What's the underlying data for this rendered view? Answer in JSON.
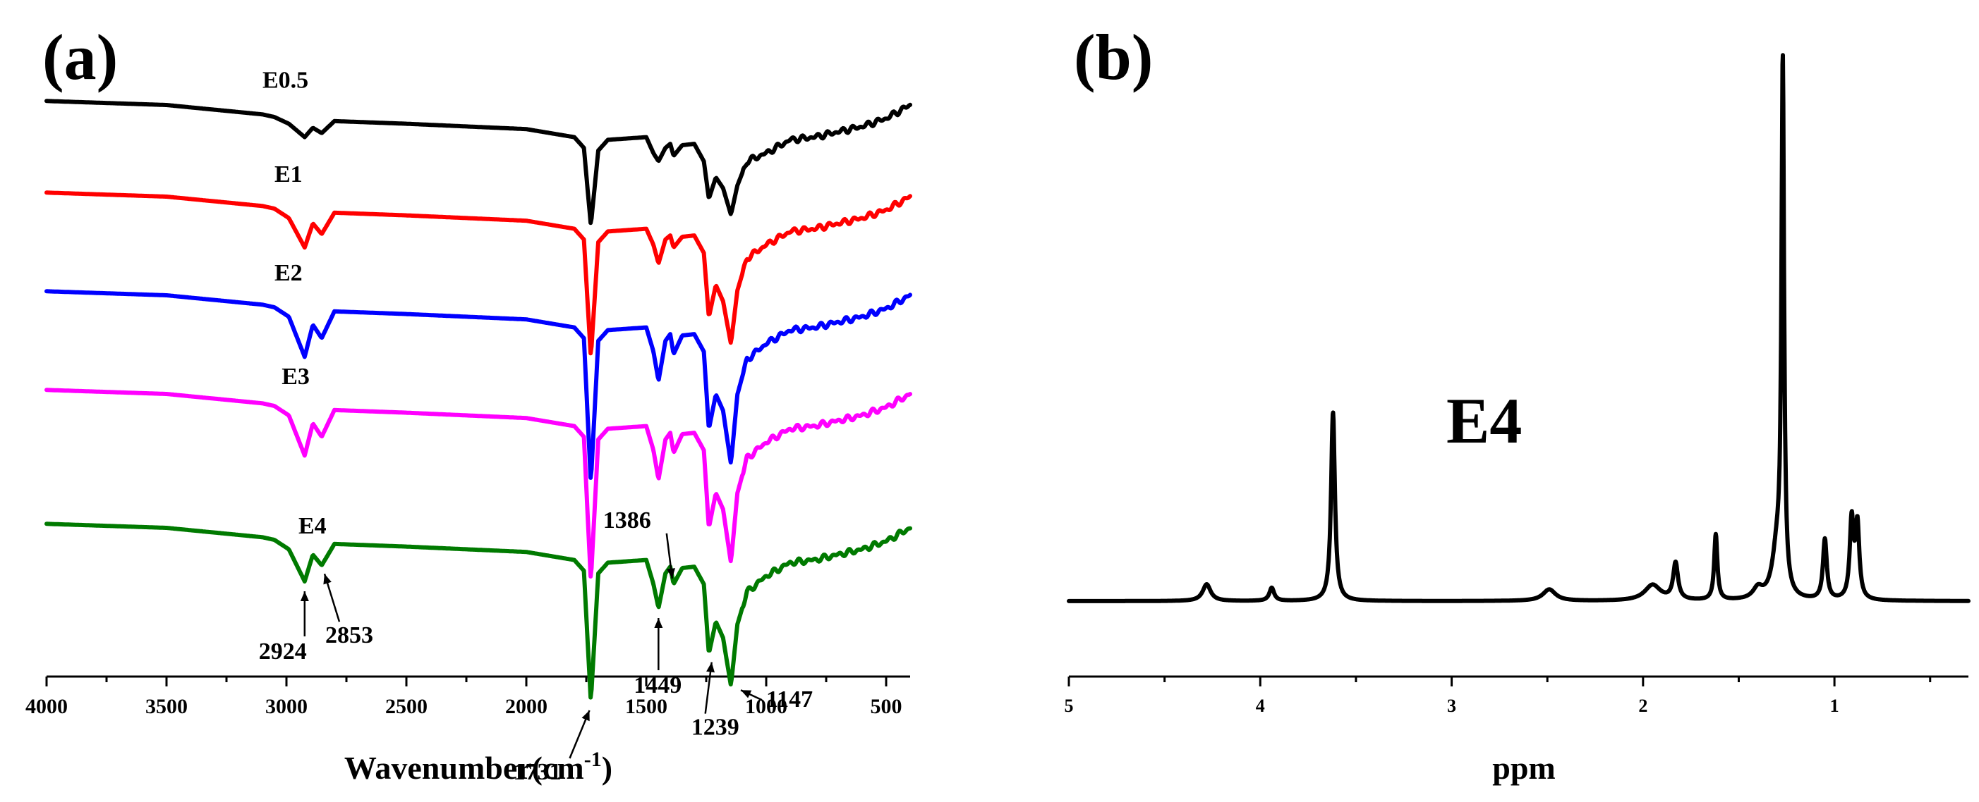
{
  "chart_data": [
    {
      "type": "line",
      "panel_label": "(a)",
      "title": "",
      "xlabel": "Wavenumber(cm",
      "xlabel_sup": "-1",
      "xlabel_end": ")",
      "ylabel": "",
      "xlim": [
        4000,
        400
      ],
      "xticks": [
        4000,
        3500,
        3000,
        2500,
        2000,
        1500,
        1000,
        500
      ],
      "grid": false,
      "series": [
        {
          "name": "E0.5",
          "color": "#000000",
          "label_x": 3100,
          "points": [
            [
              4000,
              0.965
            ],
            [
              3500,
              0.95
            ],
            [
              3100,
              0.915
            ],
            [
              3050,
              0.905
            ],
            [
              2990,
              0.88
            ],
            [
              2924,
              0.83
            ],
            [
              2890,
              0.865
            ],
            [
              2853,
              0.845
            ],
            [
              2800,
              0.89
            ],
            [
              2500,
              0.88
            ],
            [
              2000,
              0.86
            ],
            [
              1800,
              0.83
            ],
            [
              1760,
              0.79
            ],
            [
              1731,
              0.5
            ],
            [
              1700,
              0.78
            ],
            [
              1660,
              0.82
            ],
            [
              1500,
              0.83
            ],
            [
              1470,
              0.77
            ],
            [
              1449,
              0.74
            ],
            [
              1420,
              0.79
            ],
            [
              1400,
              0.805
            ],
            [
              1386,
              0.76
            ],
            [
              1350,
              0.8
            ],
            [
              1300,
              0.805
            ],
            [
              1260,
              0.74
            ],
            [
              1239,
              0.6
            ],
            [
              1210,
              0.68
            ],
            [
              1180,
              0.64
            ],
            [
              1147,
              0.54
            ],
            [
              1120,
              0.65
            ],
            [
              1080,
              0.74
            ],
            [
              1000,
              0.77
            ],
            [
              900,
              0.82
            ],
            [
              800,
              0.83
            ],
            [
              700,
              0.85
            ],
            [
              600,
              0.87
            ],
            [
              500,
              0.9
            ],
            [
              400,
              0.95
            ]
          ]
        },
        {
          "name": "E1",
          "color": "#ff0000",
          "label_x": 3050,
          "points": [
            [
              4000,
              0.965
            ],
            [
              3500,
              0.95
            ],
            [
              3100,
              0.915
            ],
            [
              3050,
              0.905
            ],
            [
              2990,
              0.87
            ],
            [
              2924,
              0.76
            ],
            [
              2890,
              0.85
            ],
            [
              2853,
              0.81
            ],
            [
              2800,
              0.89
            ],
            [
              2500,
              0.88
            ],
            [
              2000,
              0.86
            ],
            [
              1800,
              0.83
            ],
            [
              1760,
              0.79
            ],
            [
              1731,
              0.35
            ],
            [
              1700,
              0.78
            ],
            [
              1660,
              0.82
            ],
            [
              1500,
              0.83
            ],
            [
              1470,
              0.77
            ],
            [
              1449,
              0.7
            ],
            [
              1420,
              0.79
            ],
            [
              1400,
              0.805
            ],
            [
              1386,
              0.76
            ],
            [
              1350,
              0.8
            ],
            [
              1300,
              0.805
            ],
            [
              1260,
              0.74
            ],
            [
              1239,
              0.5
            ],
            [
              1210,
              0.62
            ],
            [
              1180,
              0.56
            ],
            [
              1147,
              0.4
            ],
            [
              1120,
              0.6
            ],
            [
              1080,
              0.72
            ],
            [
              1000,
              0.77
            ],
            [
              900,
              0.82
            ],
            [
              800,
              0.83
            ],
            [
              700,
              0.85
            ],
            [
              600,
              0.87
            ],
            [
              500,
              0.9
            ],
            [
              400,
              0.95
            ]
          ]
        },
        {
          "name": "E2",
          "color": "#0000ff",
          "label_x": 3050,
          "points": [
            [
              4000,
              0.965
            ],
            [
              3500,
              0.95
            ],
            [
              3100,
              0.915
            ],
            [
              3050,
              0.905
            ],
            [
              2990,
              0.87
            ],
            [
              2924,
              0.72
            ],
            [
              2890,
              0.84
            ],
            [
              2853,
              0.79
            ],
            [
              2800,
              0.89
            ],
            [
              2500,
              0.88
            ],
            [
              2000,
              0.86
            ],
            [
              1800,
              0.83
            ],
            [
              1760,
              0.79
            ],
            [
              1731,
              0.25
            ],
            [
              1700,
              0.78
            ],
            [
              1660,
              0.82
            ],
            [
              1500,
              0.83
            ],
            [
              1470,
              0.74
            ],
            [
              1449,
              0.63
            ],
            [
              1420,
              0.78
            ],
            [
              1400,
              0.805
            ],
            [
              1386,
              0.73
            ],
            [
              1350,
              0.8
            ],
            [
              1300,
              0.805
            ],
            [
              1260,
              0.74
            ],
            [
              1239,
              0.45
            ],
            [
              1210,
              0.58
            ],
            [
              1180,
              0.52
            ],
            [
              1147,
              0.32
            ],
            [
              1120,
              0.58
            ],
            [
              1080,
              0.71
            ],
            [
              1000,
              0.77
            ],
            [
              900,
              0.82
            ],
            [
              800,
              0.83
            ],
            [
              700,
              0.85
            ],
            [
              600,
              0.87
            ],
            [
              500,
              0.9
            ],
            [
              400,
              0.95
            ]
          ]
        },
        {
          "name": "E3",
          "color": "#ff00ff",
          "label_x": 3020,
          "points": [
            [
              4000,
              0.965
            ],
            [
              3500,
              0.95
            ],
            [
              3100,
              0.915
            ],
            [
              3050,
              0.905
            ],
            [
              2990,
              0.87
            ],
            [
              2924,
              0.72
            ],
            [
              2890,
              0.84
            ],
            [
              2853,
              0.79
            ],
            [
              2800,
              0.89
            ],
            [
              2500,
              0.88
            ],
            [
              2000,
              0.86
            ],
            [
              1800,
              0.83
            ],
            [
              1760,
              0.79
            ],
            [
              1731,
              0.25
            ],
            [
              1700,
              0.78
            ],
            [
              1660,
              0.82
            ],
            [
              1500,
              0.83
            ],
            [
              1470,
              0.74
            ],
            [
              1449,
              0.63
            ],
            [
              1420,
              0.78
            ],
            [
              1400,
              0.805
            ],
            [
              1386,
              0.73
            ],
            [
              1350,
              0.8
            ],
            [
              1300,
              0.805
            ],
            [
              1260,
              0.74
            ],
            [
              1239,
              0.45
            ],
            [
              1210,
              0.58
            ],
            [
              1180,
              0.52
            ],
            [
              1147,
              0.32
            ],
            [
              1120,
              0.58
            ],
            [
              1080,
              0.71
            ],
            [
              1000,
              0.77
            ],
            [
              900,
              0.82
            ],
            [
              800,
              0.83
            ],
            [
              700,
              0.85
            ],
            [
              600,
              0.87
            ],
            [
              500,
              0.9
            ],
            [
              400,
              0.95
            ]
          ]
        },
        {
          "name": "E4",
          "color": "#007a00",
          "label_x": 2950,
          "points": [
            [
              4000,
              0.965
            ],
            [
              3500,
              0.95
            ],
            [
              3100,
              0.915
            ],
            [
              3050,
              0.905
            ],
            [
              2990,
              0.87
            ],
            [
              2924,
              0.75
            ],
            [
              2890,
              0.85
            ],
            [
              2853,
              0.81
            ],
            [
              2800,
              0.89
            ],
            [
              2500,
              0.88
            ],
            [
              2000,
              0.86
            ],
            [
              1800,
              0.83
            ],
            [
              1760,
              0.79
            ],
            [
              1731,
              0.3
            ],
            [
              1700,
              0.78
            ],
            [
              1660,
              0.82
            ],
            [
              1500,
              0.83
            ],
            [
              1470,
              0.74
            ],
            [
              1449,
              0.65
            ],
            [
              1420,
              0.78
            ],
            [
              1400,
              0.805
            ],
            [
              1386,
              0.74
            ],
            [
              1350,
              0.8
            ],
            [
              1300,
              0.805
            ],
            [
              1260,
              0.74
            ],
            [
              1239,
              0.48
            ],
            [
              1210,
              0.6
            ],
            [
              1180,
              0.54
            ],
            [
              1147,
              0.36
            ],
            [
              1120,
              0.59
            ],
            [
              1080,
              0.71
            ],
            [
              1000,
              0.77
            ],
            [
              900,
              0.82
            ],
            [
              800,
              0.83
            ],
            [
              700,
              0.85
            ],
            [
              600,
              0.87
            ],
            [
              500,
              0.9
            ],
            [
              400,
              0.95
            ]
          ]
        }
      ],
      "annotations": [
        {
          "text": "2924",
          "x": 2924
        },
        {
          "text": "2853",
          "x": 2853
        },
        {
          "text": "1731",
          "x": 1731
        },
        {
          "text": "1449",
          "x": 1449
        },
        {
          "text": "1386",
          "x": 1386
        },
        {
          "text": "1239",
          "x": 1239
        },
        {
          "text": "1147",
          "x": 1147
        }
      ]
    },
    {
      "type": "line",
      "panel_label": "(b)",
      "title": "",
      "xlabel": "ppm",
      "ylabel": "",
      "xlim": [
        5,
        0.3
      ],
      "xticks": [
        5,
        4,
        3,
        2,
        1
      ],
      "grid": false,
      "annotation_label": "E4",
      "series": [
        {
          "name": "E4",
          "color": "#000000",
          "baseline": 0.0,
          "peaks": [
            {
              "ppm": 4.28,
              "height": 0.032,
              "width": 0.025
            },
            {
              "ppm": 3.94,
              "height": 0.025,
              "width": 0.015
            },
            {
              "ppm": 3.62,
              "height": 0.36,
              "width": 0.012
            },
            {
              "ppm": 2.49,
              "height": 0.022,
              "width": 0.04
            },
            {
              "ppm": 1.95,
              "height": 0.03,
              "width": 0.05
            },
            {
              "ppm": 1.83,
              "height": 0.07,
              "width": 0.015
            },
            {
              "ppm": 1.62,
              "height": 0.125,
              "width": 0.01
            },
            {
              "ppm": 1.4,
              "height": 0.02,
              "width": 0.03
            },
            {
              "ppm": 1.3,
              "height": 0.09,
              "width": 0.03
            },
            {
              "ppm": 1.27,
              "height": 1.0,
              "width": 0.008
            },
            {
              "ppm": 1.05,
              "height": 0.115,
              "width": 0.012
            },
            {
              "ppm": 0.91,
              "height": 0.15,
              "width": 0.012
            },
            {
              "ppm": 0.88,
              "height": 0.14,
              "width": 0.012
            }
          ]
        }
      ]
    }
  ]
}
